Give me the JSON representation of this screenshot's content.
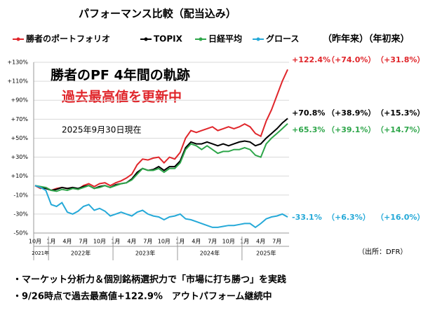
{
  "chart_data": {
    "type": "line",
    "title": "パフォーマンス比較（配当込み）",
    "column_header": "（昨年来）（年初来）",
    "annotations": [
      "勝者のPF 4年間の軌跡",
      "過去最高値を更新中",
      "2025年9月30日現在"
    ],
    "source": "（出所：DFR）",
    "notes": [
      "・マーケット分析力＆個別銘柄選択力で「市場に打ち勝つ」を実践",
      "・9/26時点で過去最高値+122.9%　アウトパフォーム継続中"
    ],
    "categories": [
      "10月",
      null,
      null,
      "1月",
      null,
      null,
      "4月",
      null,
      null,
      "7月",
      null,
      null,
      "10月",
      null,
      null,
      "1月",
      null,
      null,
      "4月",
      null,
      null,
      "7月",
      null,
      null,
      "10月",
      null,
      null,
      "1月",
      null,
      null,
      "4月",
      null,
      null,
      "7月",
      null,
      null,
      "10月",
      null,
      null,
      "1月",
      null,
      null,
      "4月",
      null,
      null,
      "7月",
      null,
      null
    ],
    "year_labels": [
      "2021年",
      "2022年",
      "2023年",
      "2024年",
      "2025年"
    ],
    "ylim": [
      -50,
      130
    ],
    "yticks": [
      {
        "value": 130,
        "label": "+130%"
      },
      {
        "value": 110,
        "label": "+110%"
      },
      {
        "value": 90,
        "label": "+90%"
      },
      {
        "value": 70,
        "label": "+70%"
      },
      {
        "value": 50,
        "label": "+50%"
      },
      {
        "value": 30,
        "label": "+30%"
      },
      {
        "value": 10,
        "label": "+10%"
      },
      {
        "value": -10,
        "label": "-10%"
      },
      {
        "value": -30,
        "label": "-30%"
      },
      {
        "value": -50,
        "label": "-50%"
      }
    ],
    "grid": true,
    "series": [
      {
        "name": "勝者のポートフォリオ",
        "color": "#e0262b",
        "last_label": "+122.4%",
        "since_last_year": "（+74.0%）",
        "ytd": "（+31.8%）",
        "values": [
          0,
          -3,
          -2,
          -5,
          -3,
          -2,
          -3,
          -2,
          -4,
          0,
          2,
          -1,
          2,
          3,
          0,
          3,
          5,
          8,
          12,
          22,
          28,
          27,
          29,
          30,
          24,
          30,
          28,
          35,
          50,
          58,
          56,
          58,
          60,
          62,
          58,
          60,
          62,
          60,
          62,
          65,
          62,
          55,
          52,
          68,
          80,
          95,
          110,
          122.4
        ]
      },
      {
        "name": "TOPIX",
        "color": "#000000",
        "last_label": "+70.8%",
        "since_last_year": "（+38.9%）",
        "ytd": "（+15.3%）",
        "values": [
          0,
          -2,
          -3,
          -5,
          -4,
          -2,
          -3,
          -2,
          -3,
          -1,
          0,
          -3,
          -1,
          0,
          -2,
          1,
          2,
          3,
          7,
          14,
          18,
          16,
          17,
          20,
          16,
          20,
          20,
          26,
          40,
          46,
          44,
          44,
          46,
          44,
          42,
          44,
          42,
          44,
          46,
          47,
          46,
          42,
          44,
          50,
          55,
          60,
          66,
          70.8
        ]
      },
      {
        "name": "日経平均",
        "color": "#2ea64a",
        "last_label": "+65.3%",
        "since_last_year": "（+39.1%）",
        "ytd": "（+14.7%）",
        "values": [
          0,
          -1,
          -2,
          -5,
          -6,
          -4,
          -5,
          -3,
          -4,
          -2,
          0,
          -3,
          -2,
          0,
          -2,
          0,
          2,
          3,
          6,
          12,
          18,
          16,
          16,
          18,
          14,
          18,
          18,
          24,
          38,
          44,
          42,
          38,
          42,
          38,
          34,
          36,
          36,
          38,
          38,
          40,
          38,
          32,
          30,
          44,
          50,
          55,
          60,
          65.3
        ]
      },
      {
        "name": "グロース",
        "color": "#25a9d8",
        "last_label": "-33.1%",
        "since_last_year": "（+6.3%）",
        "ytd": "（+16.0%）",
        "values": [
          0,
          -2,
          -5,
          -20,
          -22,
          -18,
          -28,
          -30,
          -27,
          -22,
          -20,
          -26,
          -24,
          -27,
          -32,
          -30,
          -28,
          -30,
          -32,
          -28,
          -26,
          -30,
          -32,
          -33,
          -36,
          -33,
          -32,
          -30,
          -35,
          -36,
          -38,
          -40,
          -42,
          -44,
          -44,
          -43,
          -42,
          -42,
          -41,
          -40,
          -40,
          -44,
          -40,
          -35,
          -33,
          -32,
          -30,
          -33.1
        ]
      }
    ]
  }
}
